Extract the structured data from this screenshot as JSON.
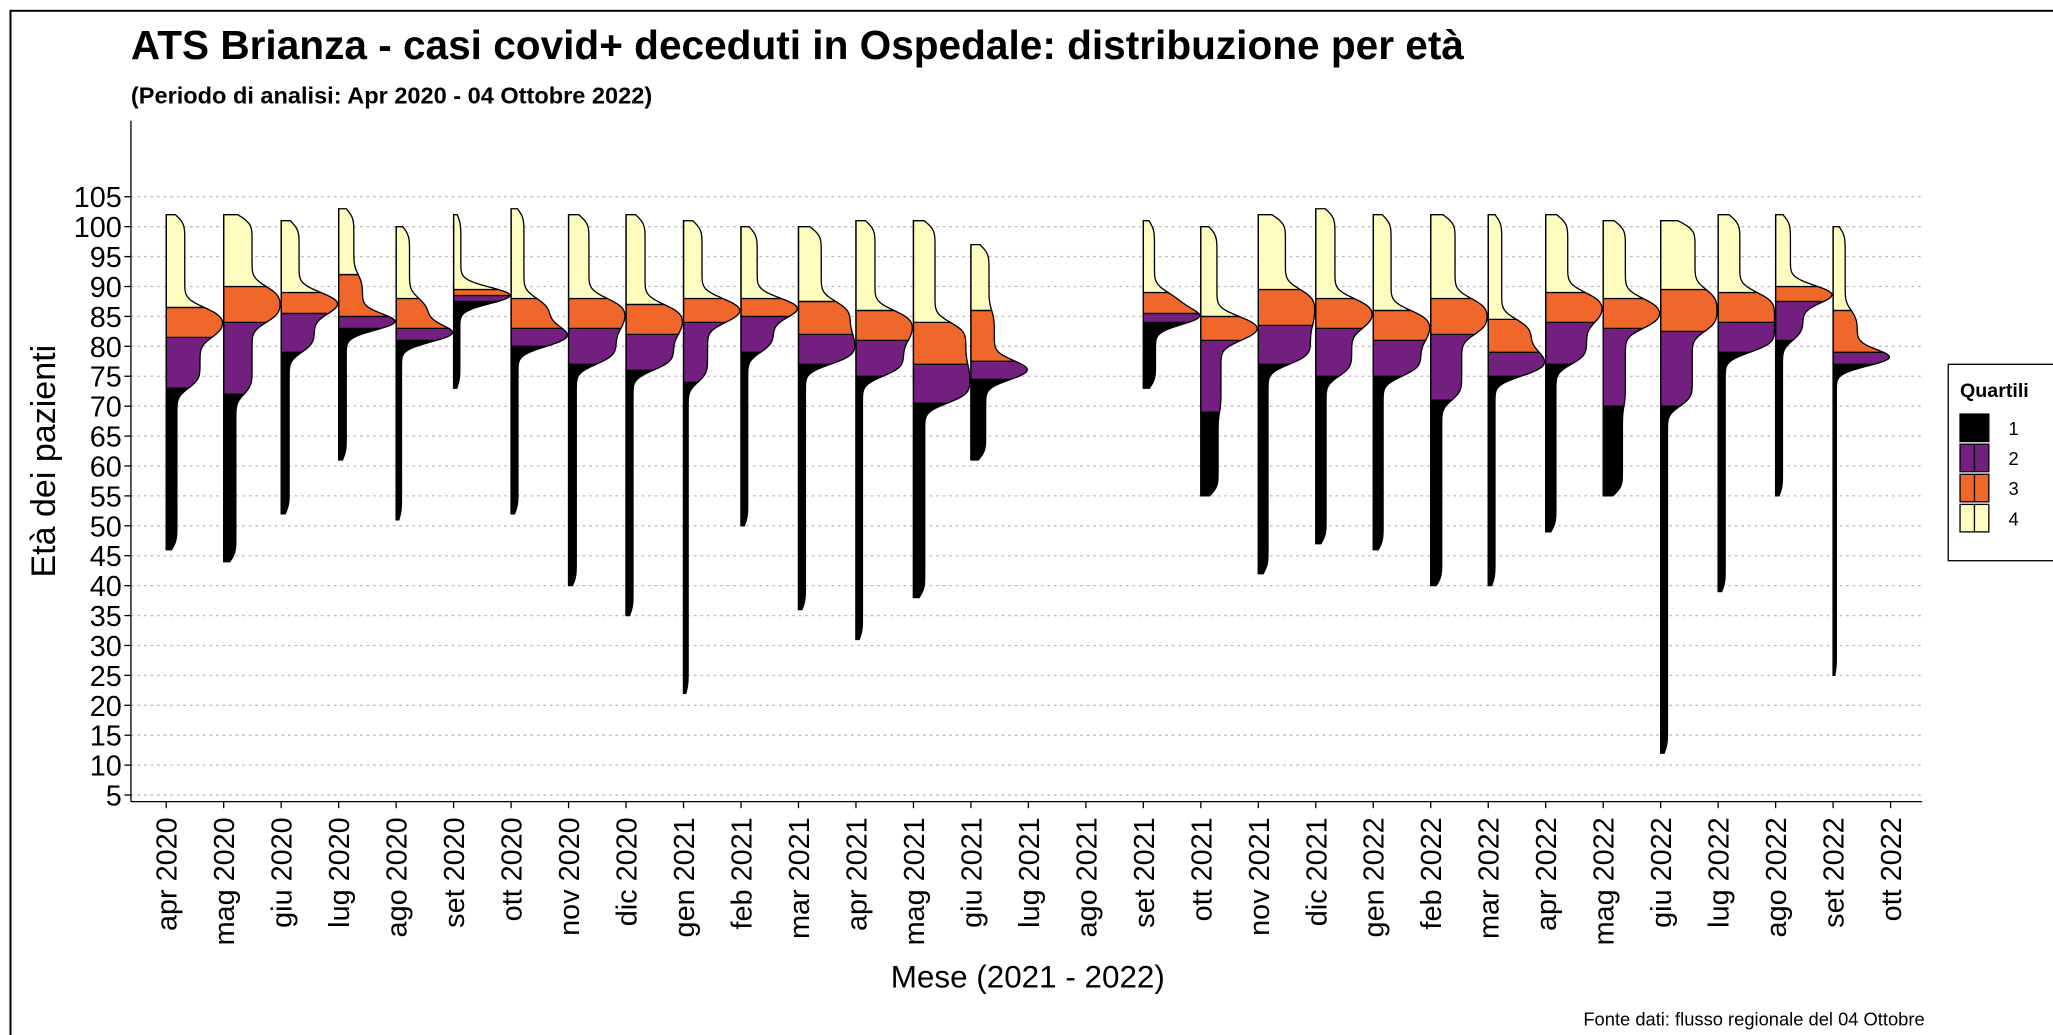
{
  "chart_data": {
    "type": "half-violin",
    "title": "ATS Brianza - casi covid+ deceduti in Ospedale: distribuzione per età",
    "subtitle": "(Periodo di analisi: Apr 2020 - 04 Ottobre 2022)",
    "y_label": "Età dei pazienti",
    "x_label": "Mese (2021 - 2022)",
    "source": "Fonte dati: flusso regionale del 04 Ottobre",
    "legend_title": "Quartili",
    "categories": [
      "apr 2020",
      "mag 2020",
      "giu 2020",
      "lug 2020",
      "ago 2020",
      "set 2020",
      "ott 2020",
      "nov 2020",
      "dic 2020",
      "gen 2021",
      "feb 2021",
      "mar 2021",
      "apr 2021",
      "mag 2021",
      "giu 2021",
      "lug 2021",
      "ago 2021",
      "set 2021",
      "ott 2021",
      "nov 2021",
      "dic 2021",
      "gen 2022",
      "feb 2022",
      "mar 2022",
      "apr 2022",
      "mag 2022",
      "giu 2022",
      "lug 2022",
      "ago 2022",
      "set 2022",
      "ott 2022"
    ],
    "min": [
      46,
      44,
      52,
      61,
      51,
      73,
      52,
      40,
      35,
      22,
      50,
      36,
      31,
      38,
      61,
      null,
      null,
      73,
      55,
      42,
      47,
      46,
      40,
      40,
      49,
      55,
      12,
      39,
      55,
      25,
      null
    ],
    "series": [
      {
        "name": "1",
        "color": "#000000",
        "values": [
          73,
          72,
          79,
          83,
          81,
          87.5,
          80,
          77,
          76,
          74,
          79,
          77,
          75,
          70.5,
          74.5,
          null,
          null,
          84,
          69,
          77,
          75,
          75,
          71,
          75,
          77,
          70,
          70,
          79,
          81,
          77,
          null
        ]
      },
      {
        "name": "2",
        "color": "#731f7f",
        "values": [
          81.5,
          84,
          85.5,
          85,
          83,
          88.5,
          83,
          83,
          82,
          84,
          85,
          82,
          81,
          77,
          77.5,
          null,
          null,
          85.5,
          81,
          83.5,
          83,
          81,
          82,
          79,
          84,
          83,
          82.5,
          84,
          87.5,
          79,
          null
        ]
      },
      {
        "name": "3",
        "color": "#f0672b",
        "values": [
          86.5,
          90,
          89,
          92,
          88,
          89.5,
          88,
          88,
          87,
          88,
          88,
          87.5,
          86,
          84,
          86,
          null,
          null,
          89,
          85,
          89.5,
          88,
          86,
          88,
          84.5,
          89,
          88,
          89.5,
          89,
          90,
          86,
          null
        ]
      },
      {
        "name": "4",
        "color": "#fcfdbf",
        "values": [
          102,
          102,
          101,
          103,
          100,
          102,
          103,
          102,
          102,
          101,
          100,
          100,
          101,
          101,
          97,
          null,
          null,
          101,
          100,
          102,
          103,
          102,
          102,
          102,
          102,
          101,
          101,
          102,
          102,
          100,
          null
        ]
      }
    ],
    "ylim": [
      3.9,
      117.7
    ],
    "yticks": [
      5,
      10,
      15,
      20,
      25,
      30,
      35,
      40,
      45,
      50,
      55,
      60,
      65,
      70,
      75,
      80,
      85,
      90,
      95,
      100,
      105
    ],
    "grid": true
  }
}
